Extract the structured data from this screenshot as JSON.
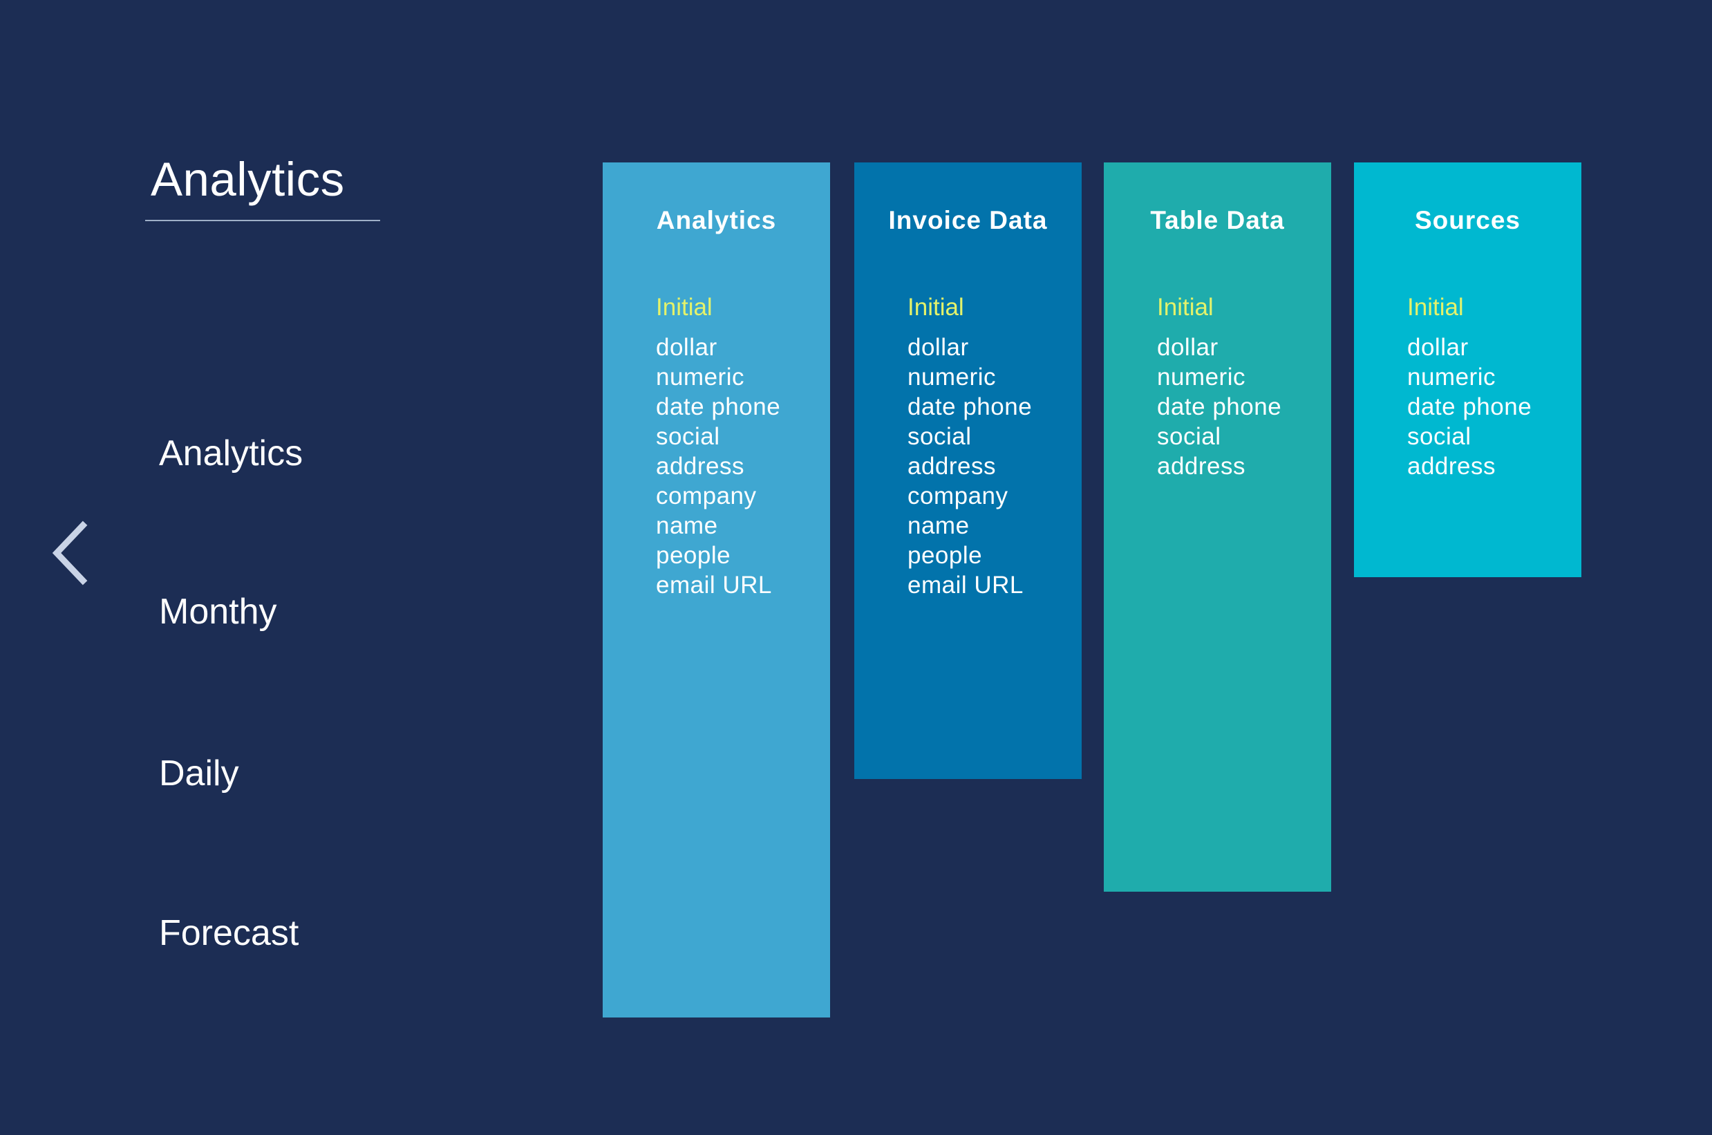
{
  "colors": {
    "background": "#1c2d54",
    "accent_initial": "#e4f26a",
    "text": "#ffffff"
  },
  "header": {
    "title": "Analytics"
  },
  "nav": {
    "back_icon": "chevron-left-icon",
    "items": [
      {
        "label": "Analytics"
      },
      {
        "label": "Monthy"
      },
      {
        "label": "Daily"
      },
      {
        "label": "Forecast"
      }
    ]
  },
  "cards": [
    {
      "title": "Analytics",
      "color": "#3fa7d1",
      "initial": "Initial",
      "items": [
        "dollar",
        "numeric",
        "date phone",
        "social",
        "address",
        "company",
        "name",
        "people",
        "email URL"
      ]
    },
    {
      "title": "Invoice Data",
      "color": "#0273ab",
      "initial": "Initial",
      "items": [
        "dollar",
        "numeric",
        "date phone",
        "social",
        "address",
        "company",
        "name",
        "people",
        "email URL"
      ]
    },
    {
      "title": "Table Data",
      "color": "#1facac",
      "initial": "Initial",
      "items": [
        "dollar",
        "numeric",
        "date phone",
        "social",
        "address"
      ]
    },
    {
      "title": "Sources",
      "color": "#00b8d0",
      "initial": "Initial",
      "items": [
        "dollar",
        "numeric",
        "date phone",
        "social",
        "address"
      ]
    }
  ]
}
